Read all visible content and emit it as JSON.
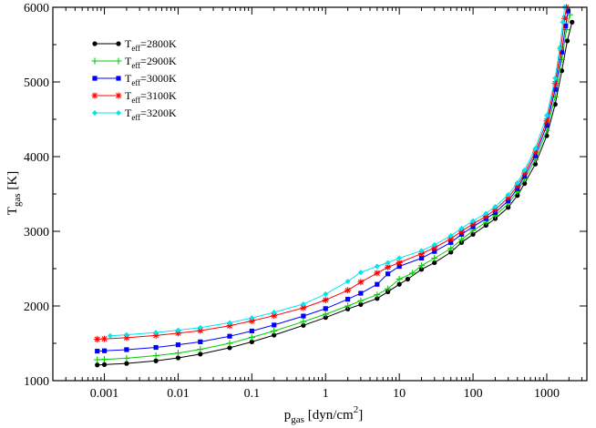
{
  "chart_data": {
    "type": "line",
    "xscale": "log",
    "xlim": [
      0.0002,
      3500
    ],
    "ylim": [
      1000,
      6000
    ],
    "grid": false,
    "legend_position": "top-left",
    "xlabel": {
      "main": "p",
      "sub": "gas",
      "unit": " [dyn/cm",
      "sup": "2",
      "end": "]"
    },
    "ylabel": {
      "main": "T",
      "sub": "gas",
      "unit": " [K]"
    },
    "xticks": [
      {
        "value": 0.001,
        "label": "0.001"
      },
      {
        "value": 0.01,
        "label": "0.01"
      },
      {
        "value": 0.1,
        "label": "0.1"
      },
      {
        "value": 1,
        "label": "1"
      },
      {
        "value": 10,
        "label": "10"
      },
      {
        "value": 100,
        "label": "100"
      },
      {
        "value": 1000,
        "label": "1000"
      }
    ],
    "yticks": [
      {
        "value": 1000,
        "label": "1000"
      },
      {
        "value": 2000,
        "label": "2000"
      },
      {
        "value": 3000,
        "label": "3000"
      },
      {
        "value": 4000,
        "label": "4000"
      },
      {
        "value": 5000,
        "label": "5000"
      },
      {
        "value": 6000,
        "label": "6000"
      }
    ],
    "series": [
      {
        "name_main": "T",
        "name_sub": "eff",
        "name_rest": "=2800K",
        "color": "#000000",
        "marker": "circle",
        "points": [
          [
            0.0008,
            1210
          ],
          [
            0.001,
            1215
          ],
          [
            0.002,
            1230
          ],
          [
            0.005,
            1265
          ],
          [
            0.01,
            1305
          ],
          [
            0.02,
            1355
          ],
          [
            0.05,
            1440
          ],
          [
            0.1,
            1520
          ],
          [
            0.2,
            1610
          ],
          [
            0.5,
            1740
          ],
          [
            1,
            1845
          ],
          [
            2,
            1960
          ],
          [
            3,
            2020
          ],
          [
            5,
            2100
          ],
          [
            7,
            2190
          ],
          [
            10,
            2290
          ],
          [
            13,
            2360
          ],
          [
            20,
            2490
          ],
          [
            30,
            2580
          ],
          [
            50,
            2720
          ],
          [
            70,
            2850
          ],
          [
            100,
            2960
          ],
          [
            150,
            3080
          ],
          [
            200,
            3170
          ],
          [
            300,
            3320
          ],
          [
            400,
            3480
          ],
          [
            500,
            3640
          ],
          [
            700,
            3900
          ],
          [
            1000,
            4280
          ],
          [
            1300,
            4700
          ],
          [
            1600,
            5150
          ],
          [
            1900,
            5550
          ],
          [
            2200,
            5800
          ]
        ]
      },
      {
        "name_main": "T",
        "name_sub": "eff",
        "name_rest": "=2900K",
        "color": "#00cc00",
        "marker": "plus",
        "points": [
          [
            0.0008,
            1280
          ],
          [
            0.001,
            1285
          ],
          [
            0.002,
            1300
          ],
          [
            0.005,
            1335
          ],
          [
            0.01,
            1370
          ],
          [
            0.02,
            1420
          ],
          [
            0.05,
            1500
          ],
          [
            0.1,
            1580
          ],
          [
            0.2,
            1665
          ],
          [
            0.5,
            1790
          ],
          [
            1,
            1890
          ],
          [
            2,
            2000
          ],
          [
            3,
            2070
          ],
          [
            5,
            2150
          ],
          [
            7,
            2230
          ],
          [
            10,
            2360
          ],
          [
            15,
            2440
          ],
          [
            20,
            2540
          ],
          [
            30,
            2640
          ],
          [
            50,
            2770
          ],
          [
            70,
            2890
          ],
          [
            100,
            3010
          ],
          [
            150,
            3120
          ],
          [
            200,
            3210
          ],
          [
            300,
            3370
          ],
          [
            400,
            3530
          ],
          [
            500,
            3700
          ],
          [
            700,
            3960
          ],
          [
            1000,
            4350
          ],
          [
            1300,
            4800
          ],
          [
            1600,
            5300
          ],
          [
            1850,
            5700
          ],
          [
            2050,
            5900
          ]
        ]
      },
      {
        "name_main": "T",
        "name_sub": "eff",
        "name_rest": "=3000K",
        "color": "#0000ff",
        "marker": "square",
        "points": [
          [
            0.0008,
            1395
          ],
          [
            0.001,
            1400
          ],
          [
            0.002,
            1415
          ],
          [
            0.005,
            1445
          ],
          [
            0.01,
            1480
          ],
          [
            0.02,
            1520
          ],
          [
            0.05,
            1595
          ],
          [
            0.1,
            1665
          ],
          [
            0.2,
            1745
          ],
          [
            0.5,
            1865
          ],
          [
            1,
            1965
          ],
          [
            2,
            2090
          ],
          [
            3,
            2170
          ],
          [
            5,
            2290
          ],
          [
            7,
            2430
          ],
          [
            10,
            2530
          ],
          [
            20,
            2640
          ],
          [
            30,
            2730
          ],
          [
            50,
            2850
          ],
          [
            70,
            2960
          ],
          [
            100,
            3060
          ],
          [
            150,
            3170
          ],
          [
            200,
            3250
          ],
          [
            300,
            3410
          ],
          [
            400,
            3570
          ],
          [
            500,
            3740
          ],
          [
            700,
            4010
          ],
          [
            1000,
            4420
          ],
          [
            1300,
            4900
          ],
          [
            1600,
            5400
          ],
          [
            1800,
            5750
          ],
          [
            1950,
            5950
          ]
        ]
      },
      {
        "name_main": "T",
        "name_sub": "eff",
        "name_rest": "=3100K",
        "color": "#ff0000",
        "marker": "star",
        "points": [
          [
            0.0008,
            1555
          ],
          [
            0.001,
            1560
          ],
          [
            0.002,
            1575
          ],
          [
            0.005,
            1605
          ],
          [
            0.01,
            1635
          ],
          [
            0.02,
            1670
          ],
          [
            0.05,
            1735
          ],
          [
            0.1,
            1800
          ],
          [
            0.2,
            1870
          ],
          [
            0.5,
            1975
          ],
          [
            1,
            2080
          ],
          [
            2,
            2210
          ],
          [
            3,
            2320
          ],
          [
            5,
            2440
          ],
          [
            7,
            2520
          ],
          [
            10,
            2580
          ],
          [
            20,
            2700
          ],
          [
            30,
            2780
          ],
          [
            50,
            2900
          ],
          [
            70,
            3000
          ],
          [
            100,
            3100
          ],
          [
            150,
            3200
          ],
          [
            200,
            3290
          ],
          [
            300,
            3450
          ],
          [
            400,
            3610
          ],
          [
            500,
            3780
          ],
          [
            700,
            4060
          ],
          [
            1000,
            4480
          ],
          [
            1300,
            4980
          ],
          [
            1550,
            5450
          ],
          [
            1750,
            5850
          ],
          [
            1850,
            6000
          ]
        ]
      },
      {
        "name_main": "T",
        "name_sub": "eff",
        "name_rest": "=3200K",
        "color": "#00e5ee",
        "marker": "diamond",
        "points": [
          [
            0.0012,
            1600
          ],
          [
            0.002,
            1615
          ],
          [
            0.005,
            1645
          ],
          [
            0.01,
            1675
          ],
          [
            0.02,
            1710
          ],
          [
            0.05,
            1775
          ],
          [
            0.1,
            1840
          ],
          [
            0.2,
            1915
          ],
          [
            0.5,
            2025
          ],
          [
            1,
            2160
          ],
          [
            2,
            2330
          ],
          [
            3,
            2450
          ],
          [
            5,
            2530
          ],
          [
            7,
            2580
          ],
          [
            10,
            2640
          ],
          [
            20,
            2740
          ],
          [
            30,
            2820
          ],
          [
            50,
            2940
          ],
          [
            70,
            3040
          ],
          [
            100,
            3140
          ],
          [
            150,
            3240
          ],
          [
            200,
            3330
          ],
          [
            300,
            3490
          ],
          [
            400,
            3650
          ],
          [
            500,
            3820
          ],
          [
            700,
            4110
          ],
          [
            1000,
            4550
          ],
          [
            1300,
            5050
          ],
          [
            1500,
            5450
          ],
          [
            1650,
            5800
          ],
          [
            1750,
            6000
          ]
        ]
      }
    ]
  }
}
